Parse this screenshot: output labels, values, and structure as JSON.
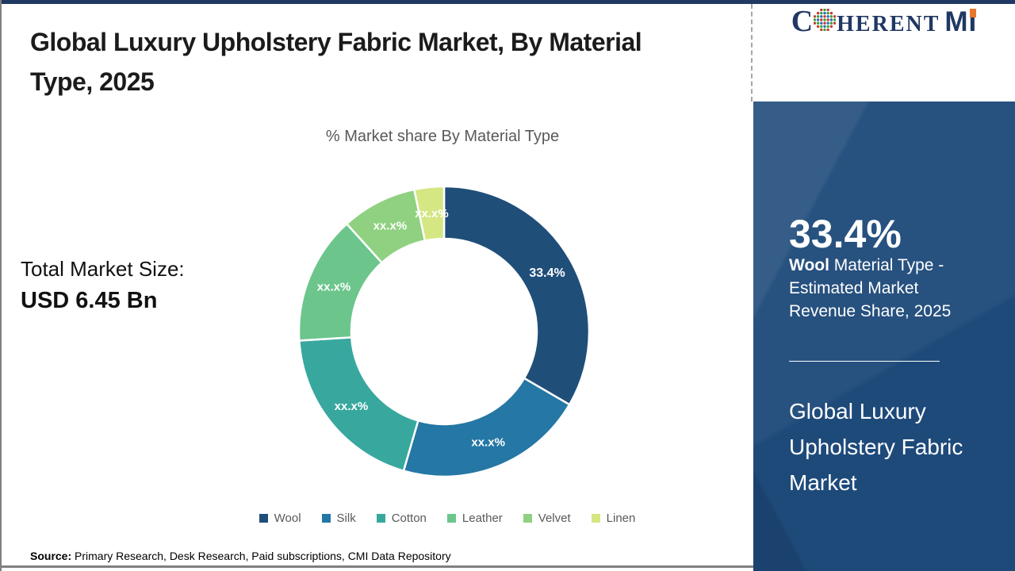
{
  "frame": {
    "top_bar_color": "#1F3864",
    "border_color": "#808080",
    "background": "#FFFFFF"
  },
  "header": {
    "title": "Global Luxury Upholstery Fabric Market, By Material Type, 2025"
  },
  "logo": {
    "prefix": "C",
    "mid": "HERENT",
    "suffix": "MI",
    "text_color": "#203864",
    "accent_color": "#E8762C",
    "dot_colors": [
      "#3AA037",
      "#C23B33",
      "#2E6DB4"
    ]
  },
  "left_panel": {
    "total_label": "Total Market Size:",
    "total_value": "USD 6.45 Bn"
  },
  "chart_data": {
    "type": "pie",
    "donut": true,
    "title": "% Market share By Material Type",
    "categories": [
      "Wool",
      "Silk",
      "Cotton",
      "Leather",
      "Velvet",
      "Linen"
    ],
    "values": [
      33.4,
      21.1,
      19.5,
      14.3,
      8.4,
      3.3
    ],
    "labels": [
      "33.4%",
      "xx.x%",
      "xx.x%",
      "xx.x%",
      "xx.x%",
      "xx.x%"
    ],
    "colors": [
      "#1F4E79",
      "#2577A5",
      "#38A89F",
      "#6CC68C",
      "#8FD180",
      "#D4E783"
    ],
    "legend_position": "bottom",
    "start_angle_deg": 0,
    "label_text_color": "#FFFFFF"
  },
  "sidebar": {
    "bg_color": "#1E4A7A",
    "stat_value": "33.4%",
    "stat_bold": "Wool",
    "stat_rest": " Material Type - Estimated Market Revenue Share, 2025",
    "market_name": "Global Luxury Upholstery Fabric Market"
  },
  "footer": {
    "source_label": "Source:",
    "source_text": " Primary Research, Desk Research, Paid subscriptions, CMI Data Repository"
  }
}
